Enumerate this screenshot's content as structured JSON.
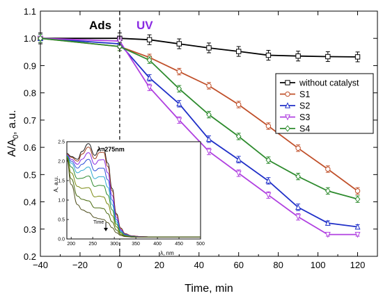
{
  "chart_data": [
    {
      "type": "line",
      "title": "",
      "xlabel": "Time, min",
      "ylabel_main": "A/A",
      "ylabel_sub": "0",
      "ylabel_tail": ", a.u.",
      "xlim": [
        -40,
        130
      ],
      "ylim": [
        0.2,
        1.1
      ],
      "xticks": [
        -40,
        -20,
        0,
        20,
        40,
        60,
        80,
        100,
        120
      ],
      "xtick_labels": [
        "−40",
        "−20",
        "0",
        "20",
        "40",
        "60",
        "80",
        "100",
        "120"
      ],
      "yticks": [
        0.2,
        0.3,
        0.4,
        0.5,
        0.6,
        0.7,
        0.8,
        0.9,
        1.0,
        1.1
      ],
      "ytick_labels": [
        "0.2",
        "0.3",
        "0.4",
        "0.5",
        "0.6",
        "0.7",
        "0.8",
        "0.9",
        "1.0",
        "1.1"
      ],
      "annotations": [
        {
          "text": "Ads",
          "color": "#000000"
        },
        {
          "text": "UV",
          "color": "#8a2be2"
        }
      ],
      "divider_x": 0,
      "legend_position": "right",
      "series": [
        {
          "name": "without catalyst",
          "color": "#000000",
          "marker": "square",
          "x": [
            -40,
            0,
            15,
            30,
            45,
            60,
            75,
            90,
            105,
            120
          ],
          "y": [
            1.0,
            1.0,
            0.995,
            0.98,
            0.965,
            0.952,
            0.938,
            0.935,
            0.933,
            0.932
          ],
          "err": [
            0.02,
            0.02,
            0.018,
            0.018,
            0.018,
            0.018,
            0.018,
            0.018,
            0.018,
            0.018
          ]
        },
        {
          "name": "S1",
          "color": "#c0502a",
          "marker": "circle",
          "x": [
            -40,
            0,
            15,
            30,
            45,
            60,
            75,
            90,
            105,
            120
          ],
          "y": [
            1.0,
            0.97,
            0.93,
            0.878,
            0.826,
            0.757,
            0.678,
            0.597,
            0.52,
            0.44
          ],
          "err": [
            0.015,
            0.015,
            0.012,
            0.012,
            0.012,
            0.012,
            0.012,
            0.012,
            0.012,
            0.012
          ]
        },
        {
          "name": "S2",
          "color": "#1f2fc8",
          "marker": "triangle-up",
          "x": [
            -40,
            0,
            15,
            30,
            45,
            60,
            75,
            90,
            105,
            120
          ],
          "y": [
            1.0,
            0.98,
            0.855,
            0.76,
            0.63,
            0.555,
            0.477,
            0.38,
            0.322,
            0.308
          ],
          "err": [
            0.015,
            0.015,
            0.012,
            0.012,
            0.012,
            0.012,
            0.012,
            0.012,
            0.008,
            0.008
          ]
        },
        {
          "name": "S3",
          "color": "#b040e0",
          "marker": "triangle-down",
          "x": [
            -40,
            0,
            15,
            30,
            45,
            60,
            75,
            90,
            105,
            120
          ],
          "y": [
            1.0,
            0.99,
            0.82,
            0.7,
            0.585,
            0.505,
            0.425,
            0.345,
            0.28,
            0.28
          ],
          "err": [
            0.015,
            0.015,
            0.012,
            0.012,
            0.012,
            0.012,
            0.012,
            0.012,
            0.006,
            0.006
          ]
        },
        {
          "name": "S4",
          "color": "#2e8b2e",
          "marker": "diamond",
          "x": [
            -40,
            0,
            15,
            30,
            45,
            60,
            75,
            90,
            105,
            120
          ],
          "y": [
            1.0,
            0.97,
            0.92,
            0.815,
            0.72,
            0.64,
            0.553,
            0.493,
            0.44,
            0.41
          ],
          "err": [
            0.015,
            0.015,
            0.012,
            0.012,
            0.012,
            0.012,
            0.012,
            0.012,
            0.012,
            0.012
          ]
        }
      ]
    },
    {
      "type": "line",
      "title": "",
      "xlabel": "λ, nm",
      "ylabel": "A, a.u.",
      "xlim": [
        190,
        500
      ],
      "ylim": [
        0,
        2.5
      ],
      "xticks": [
        200,
        250,
        300,
        350,
        400,
        450,
        500
      ],
      "yticks": [
        0.0,
        0.5,
        1.0,
        1.5,
        2.0,
        2.5
      ],
      "ytick_labels": [
        "0.0",
        "0.5",
        "1.0",
        "1.5",
        "2.0",
        "2.5"
      ],
      "peak_label": "λ=275nm",
      "arrow_label": "Time",
      "x": [
        190,
        200,
        215,
        225,
        240,
        255,
        265,
        275,
        285,
        295,
        305,
        315,
        325,
        340,
        360,
        390,
        420,
        460,
        500
      ],
      "series": [
        {
          "color": "#1a1a1a",
          "y": [
            2.2,
            2.12,
            2.05,
            2.25,
            2.45,
            2.15,
            2.32,
            2.33,
            1.95,
            1.3,
            0.65,
            0.28,
            0.14,
            0.08,
            0.06,
            0.05,
            0.05,
            0.05,
            0.05
          ]
        },
        {
          "color": "#a04020",
          "y": [
            2.18,
            2.1,
            2.0,
            2.18,
            2.36,
            2.06,
            2.22,
            2.23,
            1.86,
            1.24,
            0.62,
            0.27,
            0.13,
            0.08,
            0.06,
            0.05,
            0.05,
            0.05,
            0.05
          ]
        },
        {
          "color": "#8a2be2",
          "y": [
            2.16,
            2.05,
            1.92,
            2.05,
            2.22,
            1.92,
            2.03,
            2.04,
            1.7,
            1.12,
            0.56,
            0.24,
            0.12,
            0.07,
            0.06,
            0.05,
            0.05,
            0.05,
            0.05
          ]
        },
        {
          "color": "#3050d8",
          "y": [
            2.15,
            2.0,
            1.82,
            1.92,
            2.05,
            1.75,
            1.82,
            1.82,
            1.52,
            1.0,
            0.5,
            0.22,
            0.11,
            0.07,
            0.05,
            0.05,
            0.05,
            0.05,
            0.05
          ]
        },
        {
          "color": "#2eaad0",
          "y": [
            2.14,
            1.95,
            1.7,
            1.76,
            1.85,
            1.55,
            1.6,
            1.6,
            1.33,
            0.88,
            0.44,
            0.19,
            0.1,
            0.06,
            0.05,
            0.05,
            0.05,
            0.05,
            0.05
          ]
        },
        {
          "color": "#2e8b2e",
          "y": [
            2.12,
            1.85,
            1.55,
            1.56,
            1.62,
            1.35,
            1.38,
            1.37,
            1.13,
            0.75,
            0.38,
            0.17,
            0.09,
            0.06,
            0.05,
            0.05,
            0.05,
            0.05,
            0.05
          ]
        },
        {
          "color": "#7a8a10",
          "y": [
            2.1,
            1.7,
            1.35,
            1.3,
            1.32,
            1.08,
            1.1,
            1.08,
            0.9,
            0.6,
            0.31,
            0.14,
            0.08,
            0.05,
            0.05,
            0.05,
            0.05,
            0.05,
            0.05
          ]
        },
        {
          "color": "#4a6a10",
          "y": [
            2.08,
            1.55,
            1.1,
            1.02,
            0.98,
            0.8,
            0.8,
            0.78,
            0.65,
            0.44,
            0.23,
            0.11,
            0.07,
            0.05,
            0.05,
            0.05,
            0.05,
            0.05,
            0.05
          ]
        },
        {
          "color": "#505020",
          "y": [
            2.05,
            1.4,
            0.88,
            0.75,
            0.68,
            0.55,
            0.52,
            0.5,
            0.42,
            0.29,
            0.16,
            0.09,
            0.06,
            0.05,
            0.05,
            0.05,
            0.05,
            0.05,
            0.05
          ]
        }
      ]
    }
  ]
}
